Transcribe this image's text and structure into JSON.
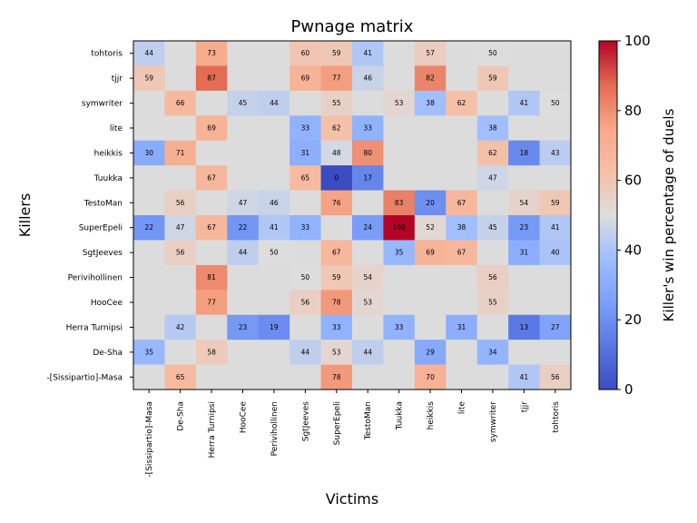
{
  "chart_data": {
    "type": "heatmap",
    "title": "Pwnage matrix",
    "xlabel": "Victims",
    "ylabel": "Killers",
    "colorbar_label": "Killer's win percentage of duels",
    "colorbar_ticks": [
      "0",
      "20",
      "40",
      "60",
      "80",
      "100"
    ],
    "vmin": 0,
    "vmax": 100,
    "colormap": "coolwarm",
    "missing_color": "#dcdcdc",
    "x_categories": [
      "-[Sissipartio]-Masa",
      "De-Sha",
      "Herra Turnipsi",
      "HooCee",
      "Perivihollinen",
      "SgtJeeves",
      "SuperEpeli",
      "TestoMan",
      "Tuukka",
      "heikkis",
      "lite",
      "symwriter",
      "tjjr",
      "tohtoris"
    ],
    "y_categories": [
      "tohtoris",
      "tjjr",
      "symwriter",
      "lite",
      "heikkis",
      "Tuukka",
      "TestoMan",
      "SuperEpeli",
      "SgtJeeves",
      "Perivihollinen",
      "HooCee",
      "Herra Turnipsi",
      "De-Sha",
      "-[Sissipartio]-Masa"
    ],
    "values": [
      [
        44,
        null,
        73,
        null,
        null,
        60,
        59,
        41,
        null,
        57,
        null,
        50,
        null,
        null
      ],
      [
        59,
        null,
        87,
        null,
        null,
        69,
        77,
        46,
        null,
        82,
        null,
        59,
        null,
        null
      ],
      [
        null,
        66,
        null,
        45,
        44,
        null,
        55,
        null,
        53,
        38,
        62,
        null,
        41,
        50
      ],
      [
        null,
        null,
        69,
        null,
        null,
        33,
        62,
        33,
        null,
        null,
        null,
        38,
        null,
        null
      ],
      [
        30,
        71,
        null,
        null,
        null,
        31,
        48,
        80,
        null,
        null,
        null,
        62,
        18,
        43
      ],
      [
        null,
        null,
        67,
        null,
        null,
        65,
        0,
        17,
        null,
        null,
        null,
        47,
        null,
        null
      ],
      [
        null,
        56,
        null,
        47,
        46,
        null,
        76,
        null,
        83,
        20,
        67,
        null,
        54,
        59
      ],
      [
        22,
        47,
        67,
        22,
        41,
        33,
        null,
        24,
        100,
        52,
        38,
        45,
        23,
        41
      ],
      [
        null,
        56,
        null,
        44,
        50,
        null,
        67,
        null,
        35,
        69,
        67,
        null,
        31,
        40
      ],
      [
        null,
        null,
        81,
        null,
        null,
        50,
        59,
        54,
        null,
        null,
        null,
        56,
        null,
        null
      ],
      [
        null,
        null,
        77,
        null,
        null,
        56,
        78,
        53,
        null,
        null,
        null,
        55,
        null,
        null
      ],
      [
        null,
        42,
        null,
        23,
        19,
        null,
        33,
        null,
        33,
        null,
        31,
        null,
        13,
        27
      ],
      [
        35,
        null,
        58,
        null,
        null,
        44,
        53,
        44,
        null,
        29,
        null,
        34,
        null,
        null
      ],
      [
        null,
        65,
        null,
        null,
        null,
        null,
        78,
        null,
        null,
        70,
        null,
        null,
        41,
        56
      ]
    ]
  }
}
